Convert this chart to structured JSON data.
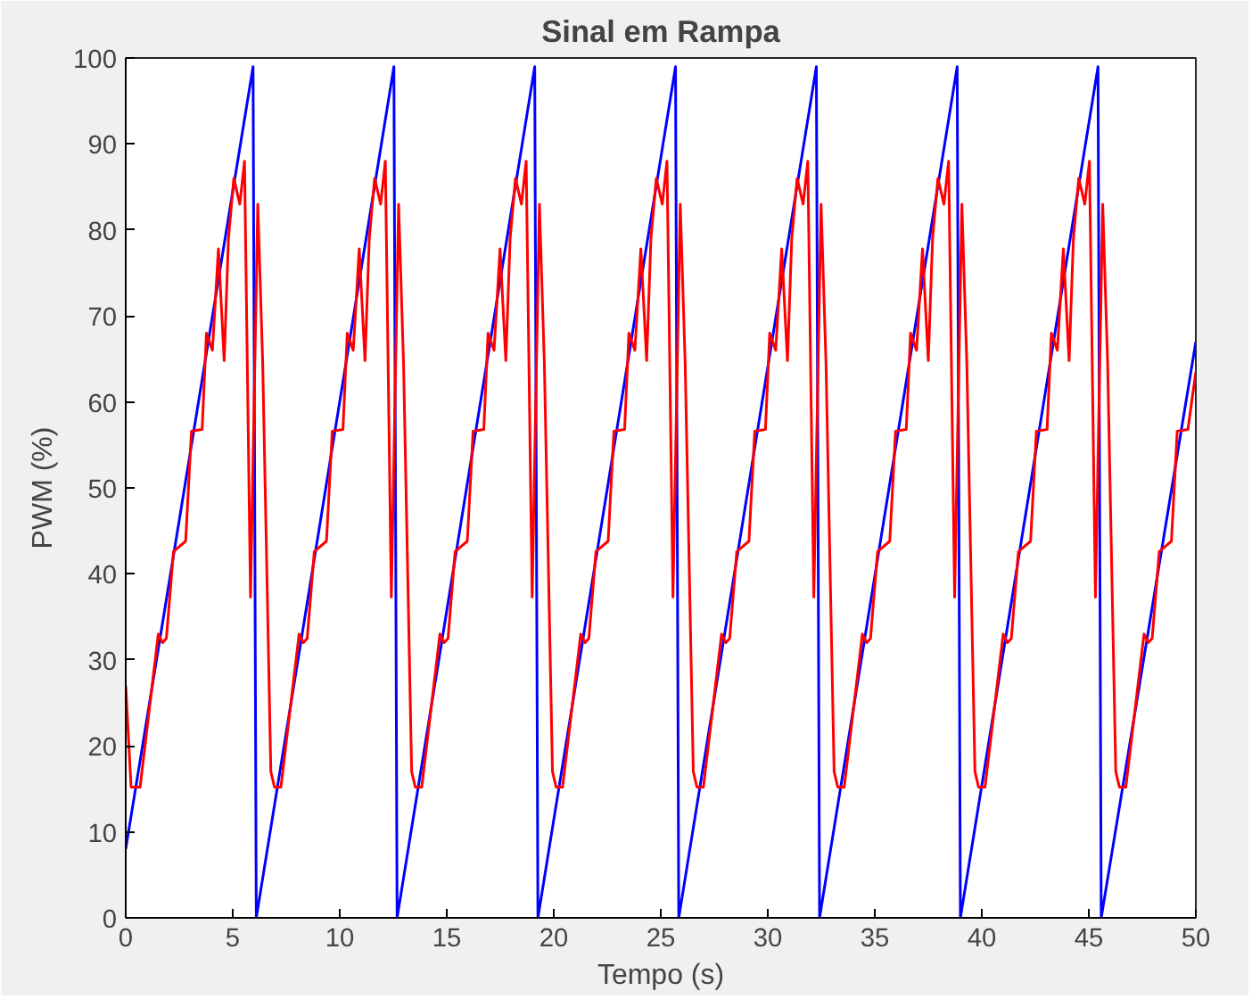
{
  "chart_data": {
    "type": "line",
    "title": "Sinal em Rampa",
    "xlabel": "Tempo (s)",
    "ylabel": "PWM (%)",
    "xlim": [
      0,
      50
    ],
    "ylim": [
      0,
      100
    ],
    "xticks": [
      0,
      5,
      10,
      15,
      20,
      25,
      30,
      35,
      40,
      45,
      50
    ],
    "yticks": [
      0,
      10,
      20,
      30,
      40,
      50,
      60,
      70,
      80,
      90,
      100
    ],
    "grid": false,
    "line_style": "solid",
    "series": [
      {
        "color": "#0000ff",
        "x": [
          0,
          5.95,
          6.1,
          12.53,
          12.68,
          19.11,
          19.26,
          25.69,
          25.84,
          32.27,
          32.42,
          38.85,
          39.0,
          45.43,
          45.58,
          50
        ],
        "values": [
          8,
          99,
          0,
          99,
          0,
          99,
          0,
          99,
          0,
          99,
          0,
          99,
          0,
          99,
          0,
          67
        ]
      },
      {
        "color": "#ff0000",
        "x": [
          0,
          0.25,
          0.67,
          1.52,
          1.72,
          1.9,
          2.23,
          2.8,
          3.07,
          3.57,
          3.77,
          4.05,
          4.33,
          4.6,
          4.8,
          5.05,
          5.33,
          5.55,
          5.83,
          6.17,
          6.4,
          6.78,
          6.95,
          7.25,
          8.1,
          8.3,
          8.48,
          8.81,
          9.38,
          9.65,
          10.15,
          10.35,
          10.63,
          10.91,
          11.18,
          11.38,
          11.63,
          11.91,
          12.13,
          12.41,
          12.75,
          12.98,
          13.36,
          13.53,
          13.83,
          14.68,
          14.88,
          15.06,
          15.39,
          15.96,
          16.23,
          16.73,
          16.93,
          17.21,
          17.49,
          17.76,
          17.96,
          18.21,
          18.49,
          18.71,
          18.99,
          19.33,
          19.56,
          19.94,
          20.11,
          20.41,
          21.26,
          21.46,
          21.64,
          21.97,
          22.54,
          22.81,
          23.31,
          23.51,
          23.79,
          24.07,
          24.34,
          24.54,
          24.79,
          25.07,
          25.29,
          25.57,
          25.91,
          26.14,
          26.52,
          26.69,
          26.99,
          27.84,
          28.04,
          28.22,
          28.55,
          29.12,
          29.39,
          29.89,
          30.09,
          30.37,
          30.65,
          30.92,
          31.12,
          31.37,
          31.65,
          31.87,
          32.15,
          32.49,
          32.72,
          33.1,
          33.27,
          33.57,
          34.42,
          34.62,
          34.8,
          35.13,
          35.7,
          35.97,
          36.47,
          36.67,
          36.95,
          37.23,
          37.5,
          37.7,
          37.95,
          38.23,
          38.45,
          38.73,
          39.07,
          39.3,
          39.68,
          39.85,
          40.15,
          41.0,
          41.2,
          41.38,
          41.71,
          42.28,
          42.55,
          43.05,
          43.25,
          43.53,
          43.81,
          44.08,
          44.28,
          44.53,
          44.81,
          45.03,
          45.31,
          45.65,
          45.88,
          46.26,
          46.43,
          46.73,
          47.58,
          47.78,
          47.96,
          48.29,
          48.86,
          49.13,
          49.63,
          50
        ],
        "values": [
          27,
          15.2,
          15.2,
          33,
          32,
          32.5,
          42.6,
          43.8,
          56.6,
          56.8,
          68,
          66,
          77.8,
          64.8,
          79,
          86,
          83,
          88,
          37.3,
          83,
          64.5,
          17,
          15.2,
          15.2,
          33,
          32,
          32.5,
          42.6,
          43.8,
          56.6,
          56.8,
          68,
          66,
          77.8,
          64.8,
          79,
          86,
          83,
          88,
          37.3,
          83,
          64.5,
          17,
          15.2,
          15.2,
          33,
          32,
          32.5,
          42.6,
          43.8,
          56.6,
          56.8,
          68,
          66,
          77.8,
          64.8,
          79,
          86,
          83,
          88,
          37.3,
          83,
          64.5,
          17,
          15.2,
          15.2,
          33,
          32,
          32.5,
          42.6,
          43.8,
          56.6,
          56.8,
          68,
          66,
          77.8,
          64.8,
          79,
          86,
          83,
          88,
          37.3,
          83,
          64.5,
          17,
          15.2,
          15.2,
          33,
          32,
          32.5,
          42.6,
          43.8,
          56.6,
          56.8,
          68,
          66,
          77.8,
          64.8,
          79,
          86,
          83,
          88,
          37.3,
          83,
          64.5,
          17,
          15.2,
          15.2,
          33,
          32,
          32.5,
          42.6,
          43.8,
          56.6,
          56.8,
          68,
          66,
          77.8,
          64.8,
          79,
          86,
          83,
          88,
          37.3,
          83,
          64.5,
          17,
          15.2,
          15.2,
          33,
          32,
          32.5,
          42.6,
          43.8,
          56.6,
          56.8,
          68,
          66,
          77.8,
          64.8,
          79,
          86,
          83,
          88,
          37.3,
          83,
          64.5,
          17,
          15.2,
          15.2,
          33,
          32,
          32.5,
          42.6,
          43.8,
          56.6,
          56.8,
          63.5
        ]
      }
    ]
  }
}
